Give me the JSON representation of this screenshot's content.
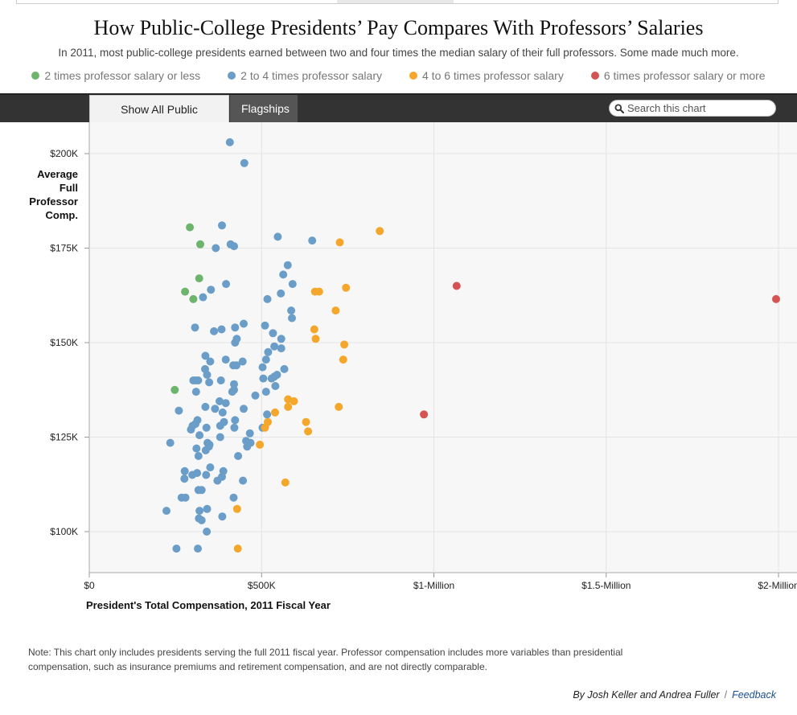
{
  "title": "How Public-College Presidents’ Pay Compares With Professors’ Salaries",
  "subtitle": "In 2011, most public-college presidents earned between two and four times the median salary of their full professors. Some made much more.",
  "legend": [
    {
      "label": "2 times professor salary or less",
      "color": "#6db56d"
    },
    {
      "label": "2 to 4 times professor salary",
      "color": "#6a9ec8"
    },
    {
      "label": "4 to 6 times professor salary",
      "color": "#f4a72a"
    },
    {
      "label": "6 times professor salary or more",
      "color": "#d65353"
    }
  ],
  "tabs": {
    "all": "Show All Public Colleges",
    "flagships": "Flagships"
  },
  "search": {
    "placeholder": "Search this chart",
    "icon": "magnifier-icon"
  },
  "note": "Note: This chart only includes presidents serving the full 2011 fiscal year. Professor compensation includes more variables than presidential compensation, such as insurance premiums and retirement compensation, and are not directly comparable.",
  "credit": {
    "authors": "By Josh Keller and Andrea Fuller",
    "separator": "/",
    "feedback": "Feedback"
  },
  "chart_data": {
    "type": "scatter",
    "xlabel": "President's Total Compensation, 2011 Fiscal Year",
    "ylabel": [
      "Average",
      "Full",
      "Professor",
      "Comp."
    ],
    "xlim": [
      0,
      2000000
    ],
    "ylim": [
      90000,
      208000
    ],
    "xticks": [
      {
        "v": 0,
        "label": "$0"
      },
      {
        "v": 500000,
        "label": "$500K"
      },
      {
        "v": 1000000,
        "label": "$1-Million"
      },
      {
        "v": 1500000,
        "label": "$1.5-Million"
      },
      {
        "v": 2000000,
        "label": "$2-Million"
      }
    ],
    "yticks": [
      {
        "v": 100000,
        "label": "$100K"
      },
      {
        "v": 125000,
        "label": "$125K"
      },
      {
        "v": 150000,
        "label": "$150K"
      },
      {
        "v": 175000,
        "label": "$175K"
      },
      {
        "v": 200000,
        "label": "$200K"
      }
    ],
    "grid": true,
    "series": [
      {
        "category": 0,
        "color": "#6db56d",
        "points": [
          [
            292000,
            180500
          ],
          [
            322000,
            176000
          ],
          [
            319000,
            167000
          ],
          [
            278000,
            163500
          ],
          [
            302000,
            161500
          ],
          [
            248000,
            137500
          ]
        ]
      },
      {
        "category": 1,
        "color": "#6a9ec8",
        "points": [
          [
            408000,
            203000
          ],
          [
            450000,
            197500
          ],
          [
            385000,
            181000
          ],
          [
            410000,
            176000
          ],
          [
            420000,
            175500
          ],
          [
            367000,
            175000
          ],
          [
            547000,
            178000
          ],
          [
            647000,
            177000
          ],
          [
            576000,
            170500
          ],
          [
            563000,
            168000
          ],
          [
            590000,
            165500
          ],
          [
            397000,
            165500
          ],
          [
            353000,
            164000
          ],
          [
            556000,
            163000
          ],
          [
            330000,
            162000
          ],
          [
            517000,
            161500
          ],
          [
            586000,
            158500
          ],
          [
            588000,
            156500
          ],
          [
            448000,
            155000
          ],
          [
            307000,
            154000
          ],
          [
            384000,
            153500
          ],
          [
            423000,
            154000
          ],
          [
            510000,
            154500
          ],
          [
            362000,
            153000
          ],
          [
            533000,
            152500
          ],
          [
            557000,
            151000
          ],
          [
            428000,
            151000
          ],
          [
            423000,
            150000
          ],
          [
            537000,
            149000
          ],
          [
            557000,
            148500
          ],
          [
            519000,
            147500
          ],
          [
            337000,
            146500
          ],
          [
            396000,
            145500
          ],
          [
            351000,
            145000
          ],
          [
            445000,
            145000
          ],
          [
            513000,
            145500
          ],
          [
            427000,
            144000
          ],
          [
            418000,
            144000
          ],
          [
            503000,
            143500
          ],
          [
            336000,
            143000
          ],
          [
            566000,
            143000
          ],
          [
            342000,
            141500
          ],
          [
            545000,
            141500
          ],
          [
            537000,
            141000
          ],
          [
            529000,
            140500
          ],
          [
            505000,
            140500
          ],
          [
            302000,
            140000
          ],
          [
            316000,
            140000
          ],
          [
            309000,
            140000
          ],
          [
            382000,
            140000
          ],
          [
            420000,
            139000
          ],
          [
            348000,
            139500
          ],
          [
            540000,
            138500
          ],
          [
            420000,
            137500
          ],
          [
            513000,
            137000
          ],
          [
            415000,
            137000
          ],
          [
            310000,
            137000
          ],
          [
            482000,
            136000
          ],
          [
            378000,
            134500
          ],
          [
            396000,
            134000
          ],
          [
            337000,
            133000
          ],
          [
            365000,
            132500
          ],
          [
            448000,
            132500
          ],
          [
            260000,
            132000
          ],
          [
            387000,
            131500
          ],
          [
            516000,
            131000
          ],
          [
            314000,
            129500
          ],
          [
            391000,
            129000
          ],
          [
            423000,
            129500
          ],
          [
            308000,
            128500
          ],
          [
            300000,
            128000
          ],
          [
            380000,
            128000
          ],
          [
            340000,
            127500
          ],
          [
            421000,
            127500
          ],
          [
            295000,
            127000
          ],
          [
            503000,
            127500
          ],
          [
            466000,
            126000
          ],
          [
            320000,
            125500
          ],
          [
            380000,
            125000
          ],
          [
            455000,
            124000
          ],
          [
            343000,
            123500
          ],
          [
            468000,
            123500
          ],
          [
            235000,
            123500
          ],
          [
            349000,
            123000
          ],
          [
            347000,
            122500
          ],
          [
            311000,
            122000
          ],
          [
            458000,
            122500
          ],
          [
            338000,
            121500
          ],
          [
            317000,
            120000
          ],
          [
            432000,
            120000
          ],
          [
            351000,
            117000
          ],
          [
            389000,
            116000
          ],
          [
            277000,
            116000
          ],
          [
            313000,
            115500
          ],
          [
            299000,
            115000
          ],
          [
            339000,
            115000
          ],
          [
            385000,
            114500
          ],
          [
            276000,
            114000
          ],
          [
            372000,
            113500
          ],
          [
            446000,
            113500
          ],
          [
            317000,
            111000
          ],
          [
            326000,
            111000
          ],
          [
            268000,
            109000
          ],
          [
            279000,
            109000
          ],
          [
            419000,
            109000
          ],
          [
            224000,
            105500
          ],
          [
            320000,
            105500
          ],
          [
            342000,
            106000
          ],
          [
            318000,
            103500
          ],
          [
            326000,
            103000
          ],
          [
            386000,
            104000
          ],
          [
            341000,
            100000
          ],
          [
            253000,
            95500
          ],
          [
            315000,
            95500
          ]
        ]
      },
      {
        "category": 2,
        "color": "#f4a72a",
        "points": [
          [
            843000,
            179500
          ],
          [
            727000,
            176500
          ],
          [
            745000,
            164500
          ],
          [
            655000,
            163500
          ],
          [
            667000,
            163500
          ],
          [
            715000,
            158500
          ],
          [
            653000,
            153500
          ],
          [
            657000,
            151000
          ],
          [
            740000,
            149500
          ],
          [
            737000,
            145500
          ],
          [
            577000,
            135000
          ],
          [
            594000,
            134500
          ],
          [
            724000,
            133000
          ],
          [
            577000,
            133000
          ],
          [
            539000,
            131500
          ],
          [
            518000,
            129000
          ],
          [
            629000,
            129000
          ],
          [
            635000,
            126500
          ],
          [
            510000,
            127500
          ],
          [
            495000,
            123000
          ],
          [
            569000,
            113000
          ],
          [
            429000,
            106000
          ],
          [
            431000,
            95500
          ]
        ]
      },
      {
        "category": 3,
        "color": "#d65353",
        "points": [
          [
            1066000,
            165000
          ],
          [
            971000,
            131000
          ],
          [
            1993000,
            161500
          ]
        ]
      }
    ]
  }
}
